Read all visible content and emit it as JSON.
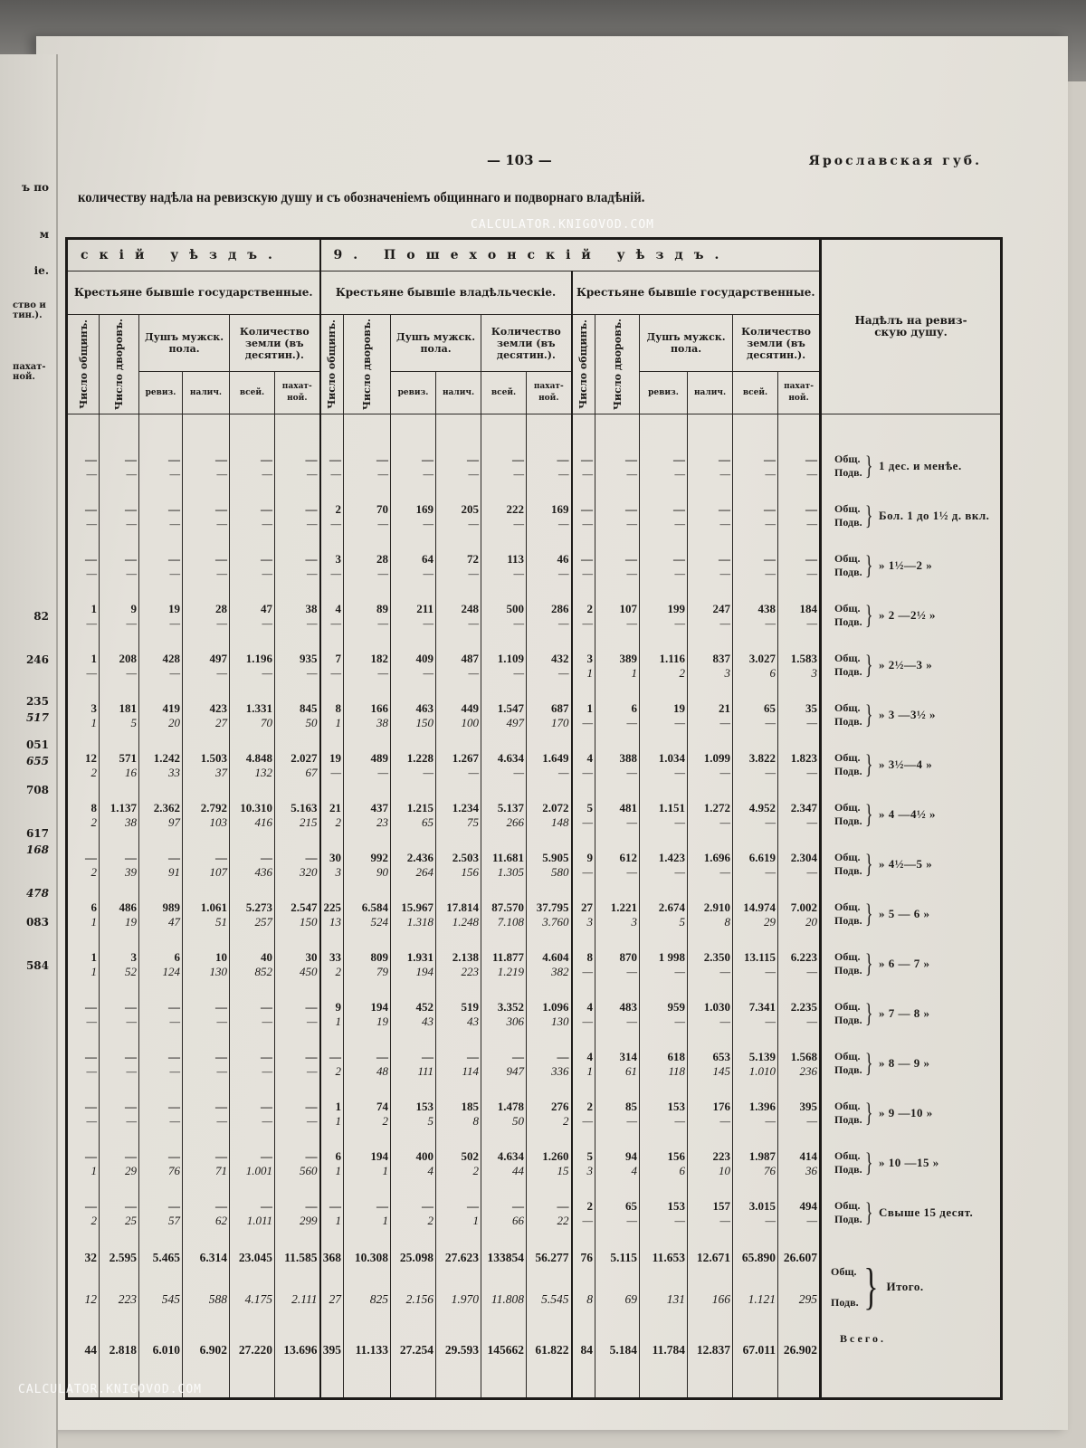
{
  "page": {
    "number": "— 103 —",
    "running_head": "Ярославская губ.",
    "title": "количеству надѣла на ревизскую душу и съ обозначеніемъ общиннаго и подворнаго владѣній."
  },
  "left_page_fragments": [
    "ъ по",
    "м",
    "іе.",
    "ство и тин.).",
    "пахат-ной.",
    "82",
    "246",
    "235",
    "517",
    "051",
    "655",
    "708",
    "617",
    "168",
    "478",
    "083",
    "584"
  ],
  "table": {
    "districts": [
      "скій уѣздъ.",
      "9. Пошехонскій уѣздъ."
    ],
    "groups": [
      "Крестьяне бывшіе государственные.",
      "Крестьяне бывшіе владѣльческіе.",
      "Крестьяне бывшіе государственные."
    ],
    "col_headers": {
      "communes": "Число общинъ.",
      "households": "Число дворовъ.",
      "souls": "Душъ мужск. пола.",
      "land": "Количество земли (въ десятин.).",
      "reviz": "ревиз.",
      "nalich": "налич.",
      "all": "всей.",
      "arable": "пахат-ной."
    },
    "label_header": "Надѣлъ на ревиз-скую душу.",
    "labels": {
      "obsh": "Общ.",
      "podv": "Подв.",
      "itogo": "Итого.",
      "vsego": "Всего."
    },
    "rows": [
      {
        "range": "1 дес. и менѣе.",
        "o": [
          "—",
          "—",
          "—",
          "—",
          "—",
          "—",
          "—",
          "—",
          "—",
          "—",
          "—",
          "—",
          "—",
          "—",
          "—",
          "—",
          "—",
          "—"
        ],
        "p": [
          "—",
          "—",
          "—",
          "—",
          "—",
          "—",
          "—",
          "—",
          "—",
          "—",
          "—",
          "—",
          "—",
          "—",
          "—",
          "—",
          "—",
          "—"
        ]
      },
      {
        "range": "Бол. 1 до 1½ д. вкл.",
        "o": [
          "—",
          "—",
          "—",
          "—",
          "—",
          "—",
          "2",
          "70",
          "169",
          "205",
          "222",
          "169",
          "—",
          "—",
          "—",
          "—",
          "—",
          "—"
        ],
        "p": [
          "—",
          "—",
          "—",
          "—",
          "—",
          "—",
          "—",
          "—",
          "—",
          "—",
          "—",
          "—",
          "—",
          "—",
          "—",
          "—",
          "—",
          "—"
        ]
      },
      {
        "range": "» 1½—2 »",
        "o": [
          "—",
          "—",
          "—",
          "—",
          "—",
          "—",
          "3",
          "28",
          "64",
          "72",
          "113",
          "46",
          "—",
          "—",
          "—",
          "—",
          "—",
          "—"
        ],
        "p": [
          "—",
          "—",
          "—",
          "—",
          "—",
          "—",
          "—",
          "—",
          "—",
          "—",
          "—",
          "—",
          "—",
          "—",
          "—",
          "—",
          "—",
          "—"
        ]
      },
      {
        "range": "» 2 —2½ »",
        "o": [
          "1",
          "9",
          "19",
          "28",
          "47",
          "38",
          "4",
          "89",
          "211",
          "248",
          "500",
          "286",
          "2",
          "107",
          "199",
          "247",
          "438",
          "184"
        ],
        "p": [
          "—",
          "—",
          "—",
          "—",
          "—",
          "—",
          "—",
          "—",
          "—",
          "—",
          "—",
          "—",
          "—",
          "—",
          "—",
          "—",
          "—",
          "—"
        ]
      },
      {
        "range": "» 2½—3 »",
        "o": [
          "1",
          "208",
          "428",
          "497",
          "1.196",
          "935",
          "7",
          "182",
          "409",
          "487",
          "1.109",
          "432",
          "3",
          "389",
          "1.116",
          "837",
          "3.027",
          "1.583"
        ],
        "p": [
          "—",
          "—",
          "—",
          "—",
          "—",
          "—",
          "—",
          "—",
          "—",
          "—",
          "—",
          "—",
          "1",
          "1",
          "2",
          "3",
          "6",
          "3"
        ]
      },
      {
        "range": "» 3 —3½ »",
        "o": [
          "3",
          "181",
          "419",
          "423",
          "1.331",
          "845",
          "8",
          "166",
          "463",
          "449",
          "1.547",
          "687",
          "1",
          "6",
          "19",
          "21",
          "65",
          "35"
        ],
        "p": [
          "1",
          "5",
          "20",
          "27",
          "70",
          "50",
          "1",
          "38",
          "150",
          "100",
          "497",
          "170",
          "—",
          "—",
          "—",
          "—",
          "—",
          "—"
        ]
      },
      {
        "range": "» 3½—4 »",
        "o": [
          "12",
          "571",
          "1.242",
          "1.503",
          "4.848",
          "2.027",
          "19",
          "489",
          "1.228",
          "1.267",
          "4.634",
          "1.649",
          "4",
          "388",
          "1.034",
          "1.099",
          "3.822",
          "1.823"
        ],
        "p": [
          "2",
          "16",
          "33",
          "37",
          "132",
          "67",
          "—",
          "—",
          "—",
          "—",
          "—",
          "—",
          "—",
          "—",
          "—",
          "—",
          "—",
          "—"
        ]
      },
      {
        "range": "» 4 —4½ »",
        "o": [
          "8",
          "1.137",
          "2.362",
          "2.792",
          "10.310",
          "5.163",
          "21",
          "437",
          "1.215",
          "1.234",
          "5.137",
          "2.072",
          "5",
          "481",
          "1.151",
          "1.272",
          "4.952",
          "2.347"
        ],
        "p": [
          "2",
          "38",
          "97",
          "103",
          "416",
          "215",
          "2",
          "23",
          "65",
          "75",
          "266",
          "148",
          "—",
          "—",
          "—",
          "—",
          "—",
          "—"
        ]
      },
      {
        "range": "» 4½—5 »",
        "o": [
          "—",
          "—",
          "—",
          "—",
          "—",
          "—",
          "30",
          "992",
          "2.436",
          "2.503",
          "11.681",
          "5.905",
          "9",
          "612",
          "1.423",
          "1.696",
          "6.619",
          "2.304"
        ],
        "p": [
          "2",
          "39",
          "91",
          "107",
          "436",
          "320",
          "3",
          "90",
          "264",
          "156",
          "1.305",
          "580",
          "—",
          "—",
          "—",
          "—",
          "—",
          "—"
        ]
      },
      {
        "range": "» 5 — 6 »",
        "o": [
          "6",
          "486",
          "989",
          "1.061",
          "5.273",
          "2.547",
          "225",
          "6.584",
          "15.967",
          "17.814",
          "87.570",
          "37.795",
          "27",
          "1.221",
          "2.674",
          "2.910",
          "14.974",
          "7.002"
        ],
        "p": [
          "1",
          "19",
          "47",
          "51",
          "257",
          "150",
          "13",
          "524",
          "1.318",
          "1.248",
          "7.108",
          "3.760",
          "3",
          "3",
          "5",
          "8",
          "29",
          "20"
        ]
      },
      {
        "range": "» 6 — 7 »",
        "o": [
          "1",
          "3",
          "6",
          "10",
          "40",
          "30",
          "33",
          "809",
          "1.931",
          "2.138",
          "11.877",
          "4.604",
          "8",
          "870",
          "1 998",
          "2.350",
          "13.115",
          "6.223"
        ],
        "p": [
          "1",
          "52",
          "124",
          "130",
          "852",
          "450",
          "2",
          "79",
          "194",
          "223",
          "1.219",
          "382",
          "—",
          "—",
          "—",
          "—",
          "—",
          "—"
        ]
      },
      {
        "range": "» 7 — 8 »",
        "o": [
          "—",
          "—",
          "—",
          "—",
          "—",
          "—",
          "9",
          "194",
          "452",
          "519",
          "3.352",
          "1.096",
          "4",
          "483",
          "959",
          "1.030",
          "7.341",
          "2.235"
        ],
        "p": [
          "—",
          "—",
          "—",
          "—",
          "—",
          "—",
          "1",
          "19",
          "43",
          "43",
          "306",
          "130",
          "—",
          "—",
          "—",
          "—",
          "—",
          "—"
        ]
      },
      {
        "range": "» 8 — 9 »",
        "o": [
          "—",
          "—",
          "—",
          "—",
          "—",
          "—",
          "—",
          "—",
          "—",
          "—",
          "—",
          "—",
          "4",
          "314",
          "618",
          "653",
          "5.139",
          "1.568"
        ],
        "p": [
          "—",
          "—",
          "—",
          "—",
          "—",
          "—",
          "2",
          "48",
          "111",
          "114",
          "947",
          "336",
          "1",
          "61",
          "118",
          "145",
          "1.010",
          "236"
        ]
      },
      {
        "range": "» 9 —10 »",
        "o": [
          "—",
          "—",
          "—",
          "—",
          "—",
          "—",
          "1",
          "74",
          "153",
          "185",
          "1.478",
          "276",
          "2",
          "85",
          "153",
          "176",
          "1.396",
          "395"
        ],
        "p": [
          "—",
          "—",
          "—",
          "—",
          "—",
          "—",
          "1",
          "2",
          "5",
          "8",
          "50",
          "2",
          "—",
          "—",
          "—",
          "—",
          "—",
          "—"
        ]
      },
      {
        "range": "» 10 —15 »",
        "o": [
          "—",
          "—",
          "—",
          "—",
          "—",
          "—",
          "6",
          "194",
          "400",
          "502",
          "4.634",
          "1.260",
          "5",
          "94",
          "156",
          "223",
          "1.987",
          "414"
        ],
        "p": [
          "1",
          "29",
          "76",
          "71",
          "1.001",
          "560",
          "1",
          "1",
          "4",
          "2",
          "44",
          "15",
          "3",
          "4",
          "6",
          "10",
          "76",
          "36"
        ]
      },
      {
        "range": "Свыше 15 десят.",
        "o": [
          "—",
          "—",
          "—",
          "—",
          "—",
          "—",
          "—",
          "—",
          "—",
          "—",
          "—",
          "—",
          "2",
          "65",
          "153",
          "157",
          "3.015",
          "494"
        ],
        "p": [
          "2",
          "25",
          "57",
          "62",
          "1.011",
          "299",
          "1",
          "1",
          "2",
          "1",
          "66",
          "22",
          "—",
          "—",
          "—",
          "—",
          "—",
          "—"
        ]
      }
    ],
    "itogo": {
      "o": [
        "32",
        "2.595",
        "5.465",
        "6.314",
        "23.045",
        "11.585",
        "368",
        "10.308",
        "25.098",
        "27.623",
        "133854",
        "56.277",
        "76",
        "5.115",
        "11.653",
        "12.671",
        "65.890",
        "26.607"
      ],
      "p": [
        "12",
        "223",
        "545",
        "588",
        "4.175",
        "2.111",
        "27",
        "825",
        "2.156",
        "1.970",
        "11.808",
        "5.545",
        "8",
        "69",
        "131",
        "166",
        "1.121",
        "295"
      ]
    },
    "vsego": [
      "44",
      "2.818",
      "6.010",
      "6.902",
      "27.220",
      "13.696",
      "395",
      "11.133",
      "27.254",
      "29.593",
      "145662",
      "61.822",
      "84",
      "5.184",
      "11.784",
      "12.837",
      "67.011",
      "26.902"
    ]
  },
  "watermark": "CALCULATOR.KNIGOVOD.COM"
}
